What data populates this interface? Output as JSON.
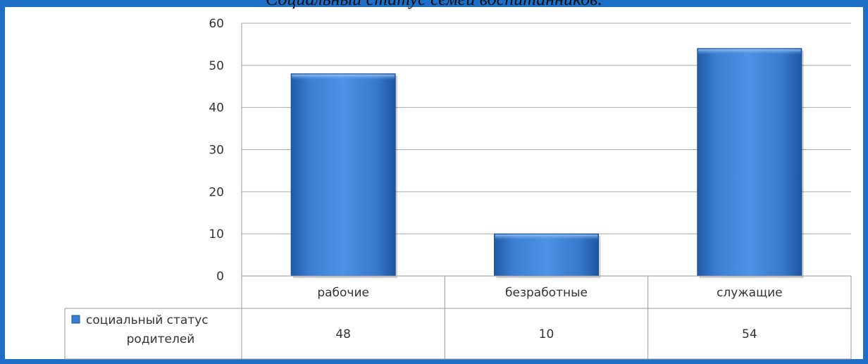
{
  "chart_data": {
    "type": "bar",
    "title": "Социальный статус семей воспитанников.",
    "categories": [
      "рабочие",
      "безработные",
      "служащие"
    ],
    "series": [
      {
        "name": "социальный статус родителей",
        "values": [
          48,
          10,
          54
        ]
      }
    ],
    "ylim": [
      0,
      60
    ],
    "yticks": [
      0,
      10,
      20,
      30,
      40,
      50,
      60
    ],
    "grid": true,
    "legend": "data-table-left",
    "data_table": true,
    "color": "#3a7fd4"
  }
}
